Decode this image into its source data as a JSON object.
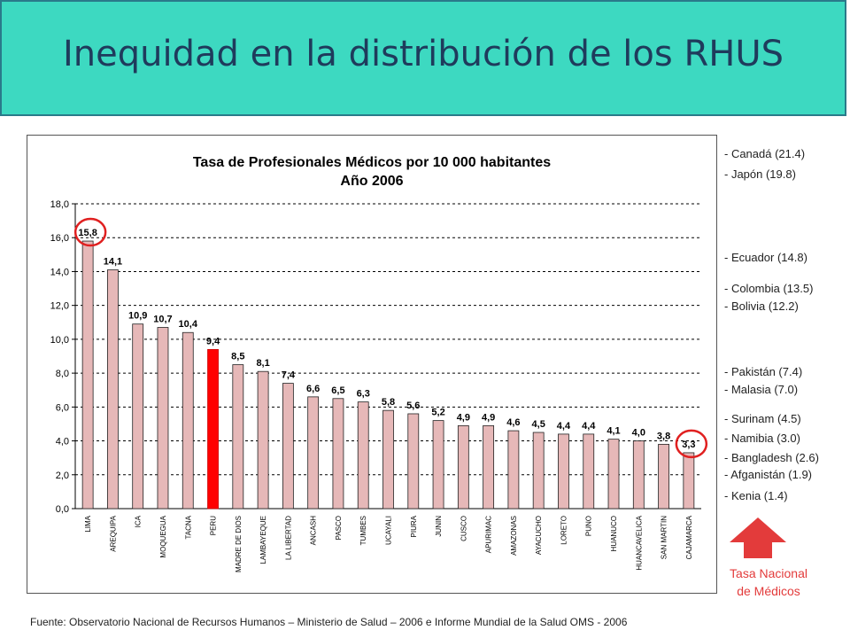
{
  "header": {
    "title": "Inequidad en la distribución de los RHUS"
  },
  "chart_data": {
    "type": "bar",
    "title_line1": "Tasa de Profesionales Médicos por 10 000 habitantes",
    "title_line2": "Año 2006",
    "categories": [
      "LIMA",
      "AREQUIPA",
      "ICA",
      "MOQUEGUA",
      "TACNA",
      "PERU",
      "MADRE DE DIOS",
      "LAMBAYEQUE",
      "LA LIBERTAD",
      "ANCASH",
      "PASCO",
      "TUMBES",
      "UCAYALI",
      "PIURA",
      "JUNIN",
      "CUSCO",
      "APURIMAC",
      "AMAZONAS",
      "AYACUCHO",
      "LORETO",
      "PUNO",
      "HUANUCO",
      "HUANCAVELICA",
      "SAN MARTIN",
      "CAJAMARCA"
    ],
    "values": [
      15.8,
      14.1,
      10.9,
      10.7,
      10.4,
      9.4,
      8.5,
      8.1,
      7.4,
      6.6,
      6.5,
      6.3,
      5.8,
      5.6,
      5.2,
      4.9,
      4.9,
      4.6,
      4.5,
      4.4,
      4.4,
      4.1,
      4.0,
      3.8,
      3.3
    ],
    "value_labels": [
      "15,8",
      "14,1",
      "10,9",
      "10,7",
      "10,4",
      "9,4",
      "8,5",
      "8,1",
      "7,4",
      "6,6",
      "6,5",
      "6,3",
      "5,8",
      "5,6",
      "5,2",
      "4,9",
      "4,9",
      "4,6",
      "4,5",
      "4,4",
      "4,4",
      "4,1",
      "4,0",
      "3,8",
      "3,3"
    ],
    "ylim": [
      0,
      18
    ],
    "yticks": [
      "0,0",
      "2,0",
      "4,0",
      "6,0",
      "8,0",
      "10,0",
      "12,0",
      "14,0",
      "16,0",
      "18,0"
    ],
    "grid": true,
    "bar_color": "#e6b8b8",
    "highlight_category": "PERU",
    "highlight_color": "#ff0000",
    "circled_categories": [
      "LIMA",
      "CAJAMARCA"
    ],
    "circle_color": "#e02020"
  },
  "side_list": [
    {
      "text": "- Canadá (21.4)"
    },
    {
      "text": "- Japón (19.8)"
    },
    {
      "text": "- Ecuador (14.8)"
    },
    {
      "text": "- Colombia (13.5)"
    },
    {
      "text": "- Bolivia (12.2)"
    },
    {
      "text": "- Pakistán (7.4)"
    },
    {
      "text": "- Malasia (7.0)"
    },
    {
      "text": "- Surinam (4.5)"
    },
    {
      "text": "- Namibia (3.0)"
    },
    {
      "text": "- Bangladesh (2.6)"
    },
    {
      "text": "- Afganistán (1.9)"
    },
    {
      "text": "- Kenia (1.4)"
    }
  ],
  "legend": {
    "line1": "Tasa Nacional",
    "line2": "de Médicos",
    "icon": "up-arrow-icon",
    "color": "#e33b3b"
  },
  "footer": "Fuente: Observatorio Nacional de Recursos Humanos – Ministerio de Salud – 2006 e Informe Mundial de la Salud OMS - 2006"
}
